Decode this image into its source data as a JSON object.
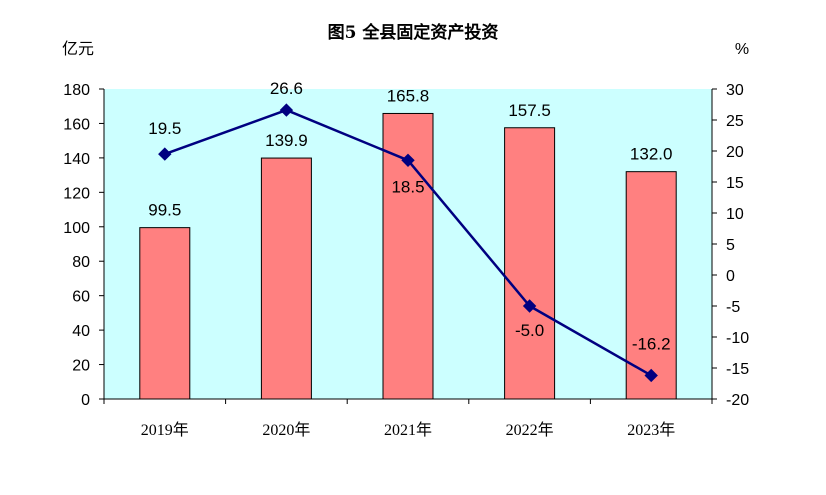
{
  "chart_data": {
    "type": "bar+line",
    "title": "图5  全县固定资产投资",
    "left_unit": "亿元",
    "right_unit": "%",
    "categories": [
      "2019年",
      "2020年",
      "2021年",
      "2022年",
      "2023年"
    ],
    "series": [
      {
        "type": "bar",
        "axis": "left",
        "values": [
          99.5,
          139.9,
          165.8,
          157.5,
          132.0
        ],
        "labels": [
          "99.5",
          "139.9",
          "165.8",
          "157.5",
          "132.0"
        ]
      },
      {
        "type": "line",
        "axis": "right",
        "values": [
          19.5,
          26.6,
          18.5,
          -5.0,
          -16.2
        ],
        "labels": [
          "19.5",
          "26.6",
          "18.5",
          "-5.0",
          "-16.2"
        ]
      }
    ],
    "left_axis": {
      "min": 0,
      "max": 180,
      "step": 20
    },
    "right_axis": {
      "min": -20,
      "max": 30,
      "step": 5
    },
    "colors": {
      "plot_bg": "#ccffff",
      "bar_fill": "#ff8080",
      "bar_stroke": "#000000",
      "line": "#000080",
      "marker": "#000080"
    },
    "grid": false,
    "legend": "none"
  }
}
